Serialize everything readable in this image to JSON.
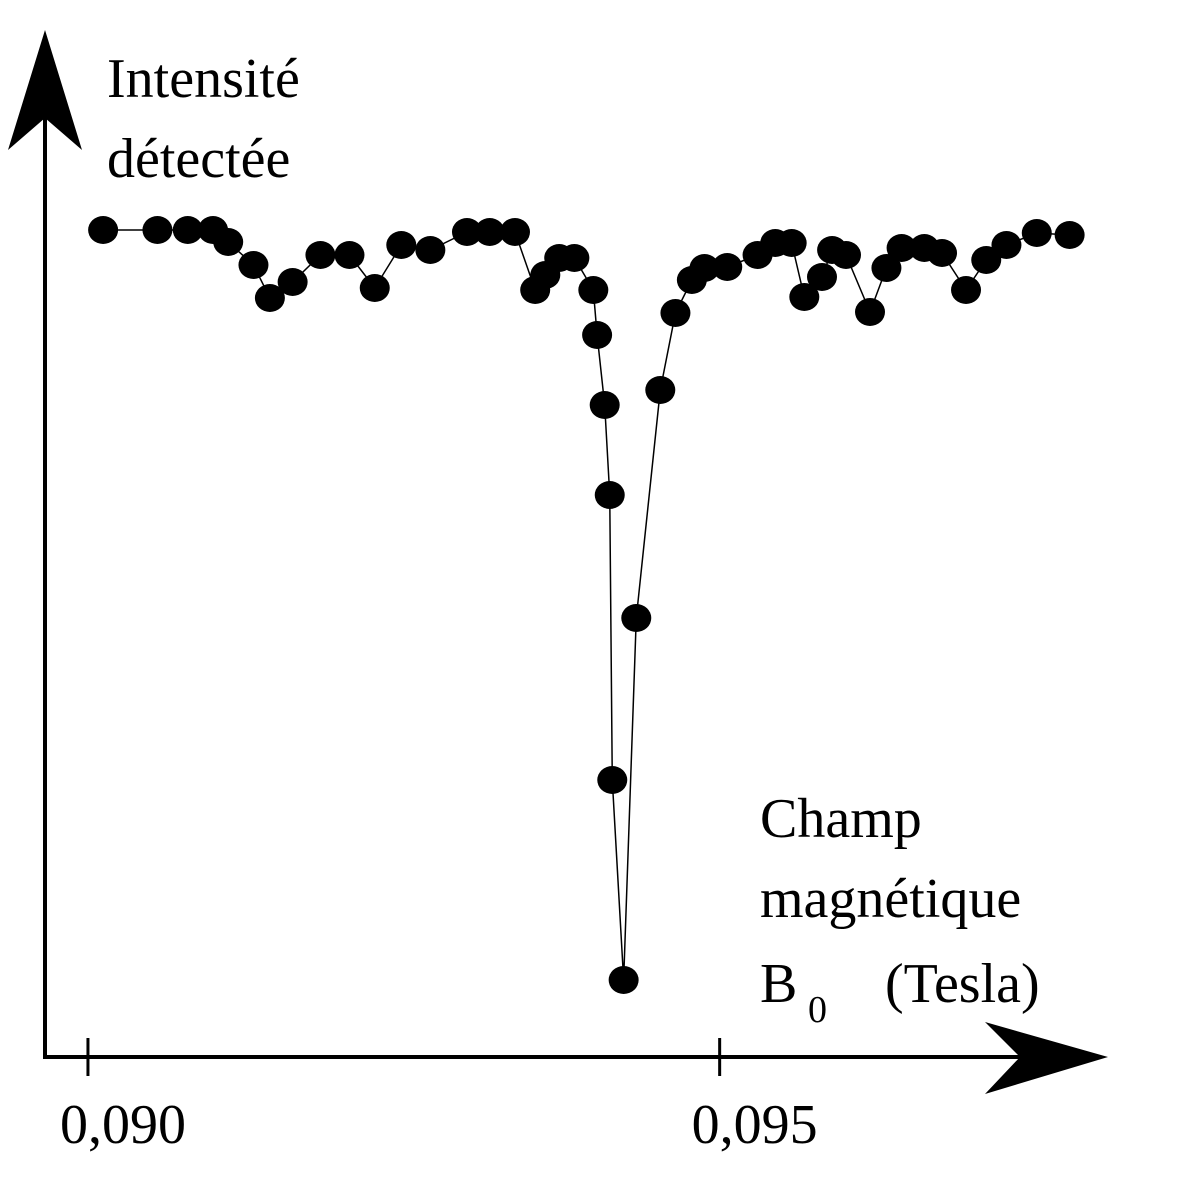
{
  "chart_data": {
    "type": "scatter",
    "ylabel": [
      "Intensité",
      "détectée"
    ],
    "xlabel": [
      "Champ",
      "magnétique"
    ],
    "xlabel_symbol": "B",
    "xlabel_subscript": "0",
    "xlabel_unit": "(Tesla)",
    "xlim": [
      0.08966,
      0.09805
    ],
    "ylim": [
      0,
      100
    ],
    "xticks": [
      {
        "value": 0.09,
        "label": "0,090"
      },
      {
        "value": 0.095,
        "label": "0,095"
      }
    ],
    "color": "#000000",
    "connected": true,
    "x": [
      0.09012,
      0.09055,
      0.09079,
      0.09099,
      0.09111,
      0.09131,
      0.09144,
      0.09162,
      0.09184,
      0.09207,
      0.09227,
      0.09248,
      0.09271,
      0.093,
      0.09318,
      0.09338,
      0.09354,
      0.09362,
      0.09373,
      0.09385,
      0.094,
      0.09403,
      0.09409,
      0.09413,
      0.09415,
      0.09424,
      0.09434,
      0.09453,
      0.09465,
      0.09478,
      0.09488,
      0.09506,
      0.0953,
      0.09544,
      0.09557,
      0.09567,
      0.09581,
      0.09589,
      0.096,
      0.09619,
      0.09632,
      0.09644,
      0.09662,
      0.09676,
      0.09695,
      0.09711,
      0.09727,
      0.09751,
      0.09777
    ],
    "values": [
      82.5,
      82.5,
      82.5,
      82.5,
      81.3,
      79,
      75.7,
      77.3,
      80,
      80,
      76.7,
      81,
      80.5,
      82.3,
      82.3,
      82.3,
      76.5,
      78,
      79.7,
      79.7,
      76.5,
      72,
      65,
      56,
      27.5,
      7.5,
      43.7,
      66.5,
      74.2,
      77.5,
      78.7,
      78.8,
      80,
      81.2,
      81.2,
      75.8,
      77.8,
      80.5,
      80,
      74.3,
      78.7,
      80.7,
      80.7,
      80.2,
      76.5,
      79.5,
      81,
      82.2,
      82
    ]
  }
}
